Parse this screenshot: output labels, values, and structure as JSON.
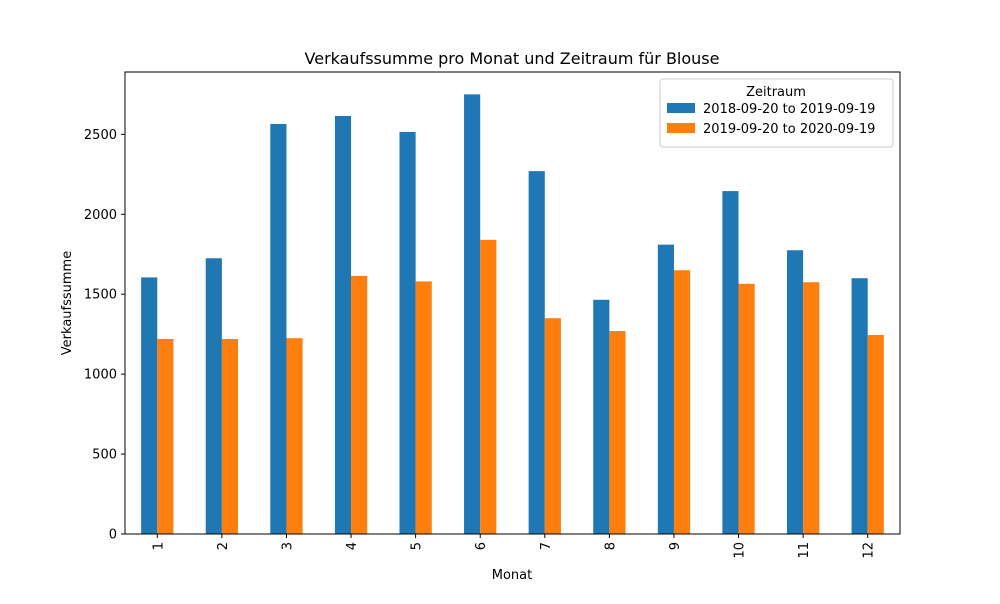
{
  "chart_data": {
    "type": "bar",
    "title": "Verkaufssumme pro Monat und Zeitraum für Blouse",
    "xlabel": "Monat",
    "ylabel": "Verkaufssumme",
    "categories": [
      "1",
      "2",
      "3",
      "4",
      "5",
      "6",
      "7",
      "8",
      "9",
      "10",
      "11",
      "12"
    ],
    "ylim": [
      0,
      2890
    ],
    "yticks": [
      0,
      500,
      1000,
      1500,
      2000,
      2500
    ],
    "grid": false,
    "legend": {
      "title": "Zeitraum",
      "placement": "top-right"
    },
    "series": [
      {
        "name": "2018-09-20 to 2019-09-19",
        "color": "#1f77b4",
        "values": [
          1605,
          1725,
          2565,
          2615,
          2515,
          2750,
          2270,
          1465,
          1810,
          2145,
          1775,
          1600
        ]
      },
      {
        "name": "2019-09-20 to 2020-09-19",
        "color": "#ff7f0e",
        "values": [
          1220,
          1220,
          1225,
          1615,
          1580,
          1840,
          1350,
          1270,
          1650,
          1565,
          1575,
          1245
        ]
      }
    ]
  }
}
